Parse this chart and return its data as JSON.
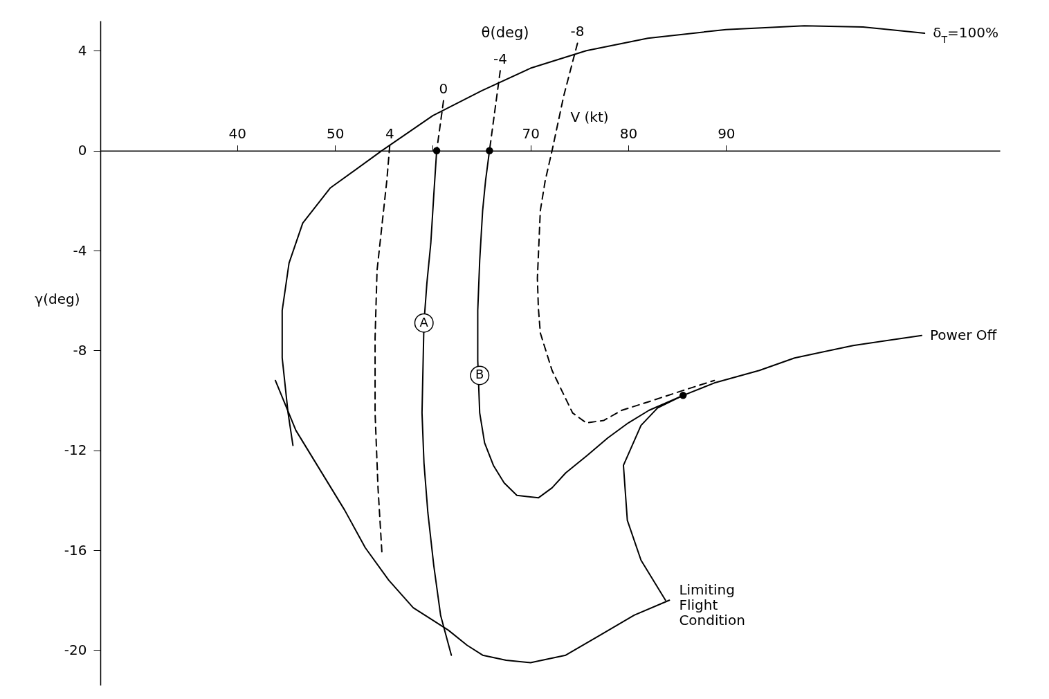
{
  "chart_data": {
    "type": "line",
    "xlabel": "V (kt)",
    "ylabel": "γ(deg)",
    "xlim": [
      26,
      118
    ],
    "ylim": [
      -21.4,
      5.2
    ],
    "xticks": [
      40,
      50,
      {
        "value": 60,
        "label": null
      },
      70,
      80,
      90
    ],
    "yticks": [
      4,
      0,
      -4,
      -8,
      -12,
      -16,
      -20
    ],
    "series": [
      {
        "name": "δ$_{T}$=100%",
        "color": "#000000",
        "line_style": "solid",
        "x": [
          110.3,
          104,
          98,
          90,
          82,
          75.7,
          70,
          65,
          60,
          54.8,
          49.5,
          46.7,
          45.3,
          44.6,
          44.6,
          45.2,
          45.7
        ],
        "values": [
          4.7,
          4.95,
          5.0,
          4.85,
          4.5,
          4,
          3.3,
          2.4,
          1.4,
          0,
          -1.5,
          -2.9,
          -4.5,
          -6.4,
          -8.3,
          -10.5,
          -11.8
        ]
      },
      {
        "name": "Power Off",
        "color": "#000000",
        "line_style": "solid",
        "x": [
          110,
          103,
          97,
          93.4,
          88.8,
          85.6,
          83,
          81.3,
          79.5,
          79.9,
          81.3,
          83.8
        ],
        "values": [
          -7.4,
          -7.8,
          -8.3,
          -8.8,
          -9.3,
          -9.8,
          -10.3,
          -11,
          -12.6,
          -14.8,
          -16.4,
          -18.0
        ]
      },
      {
        "color": "#000000",
        "line_style": "solid",
        "x": [
          43.9,
          46,
          48.5,
          51,
          53.1,
          55.5,
          58,
          60,
          61.6,
          63.5,
          65.1,
          67.5,
          70,
          73.6,
          77.1,
          80.6,
          84.2
        ],
        "values": [
          -9.2,
          -11.2,
          -12.8,
          -14.4,
          -15.9,
          -17.2,
          -18.3,
          -18.8,
          -19.2,
          -19.8,
          -20.2,
          -20.4,
          -20.5,
          -20.2,
          -19.4,
          -18.6,
          -18.0
        ]
      },
      {
        "name": "4",
        "color": "#000000",
        "line_style": "dashed",
        "x": [
          55.6,
          55.3,
          54.8,
          54.3,
          54.1,
          54.1,
          54.4,
          54.8
        ],
        "values": [
          0.2,
          -1.2,
          -3,
          -4.8,
          -7.5,
          -10.5,
          -13.5,
          -16.1
        ]
      },
      {
        "name": "0",
        "color": "#000000",
        "line_style": "dashed",
        "x": [
          61.1,
          60.4
        ],
        "values": [
          2.0,
          0
        ]
      },
      {
        "name": "-4",
        "color": "#000000",
        "line_style": "dashed",
        "x": [
          66.9,
          65.8
        ],
        "values": [
          3.2,
          0
        ]
      },
      {
        "name": "-8",
        "color": "#000000",
        "line_style": "dashed",
        "x": [
          74.8,
          73.4,
          72.2,
          71.5,
          71,
          70.7,
          70.8,
          71,
          72.2,
          74.3,
          75.7,
          77.5,
          79.3,
          82.5,
          85.6,
          88.8
        ],
        "values": [
          4.3,
          2.2,
          0,
          -1.2,
          -2.4,
          -5.1,
          -6.3,
          -7.3,
          -8.8,
          -10.5,
          -10.9,
          -10.8,
          -10.4,
          -10.0,
          -9.6,
          -9.2
        ]
      },
      {
        "color": "#000000",
        "line_style": "solid",
        "x": [
          60.4,
          60.1,
          59.8,
          59.4,
          59.1,
          58.9,
          59.1,
          59.5,
          60.1,
          60.8,
          61.9
        ],
        "values": [
          0,
          -1.8,
          -3.7,
          -5.3,
          -6.9,
          -10.5,
          -12.5,
          -14.5,
          -16.6,
          -18.6,
          -20.2
        ]
      },
      {
        "color": "#000000",
        "line_style": "solid",
        "x": [
          65.8,
          65.4,
          65.1,
          64.8,
          64.6,
          64.6,
          64.8,
          65.3,
          66.2,
          67.3,
          68.6,
          70.8,
          72.2,
          73.6,
          75.8,
          77.9,
          80,
          82.1,
          85.6
        ],
        "values": [
          0,
          -1.2,
          -2.4,
          -4.4,
          -6.4,
          -8.4,
          -10.5,
          -11.7,
          -12.6,
          -13.3,
          -13.8,
          -13.9,
          -13.5,
          -12.9,
          -12.2,
          -11.5,
          -10.9,
          -10.4,
          -9.8
        ]
      },
      {
        "type": "scatter",
        "marker": "circle",
        "color": "#000000",
        "x": [
          60.4,
          65.8,
          85.6
        ],
        "values": [
          0,
          0,
          -9.8
        ]
      }
    ],
    "annotations": [
      "θ(deg)",
      {
        "text": "A",
        "x": 59.1,
        "y": -6.9
      },
      {
        "text": "B",
        "x": 64.8,
        "y": -9.0
      },
      {
        "text": "Limiting Flight Condition",
        "x": 84.2,
        "y": -18.0
      }
    ]
  }
}
